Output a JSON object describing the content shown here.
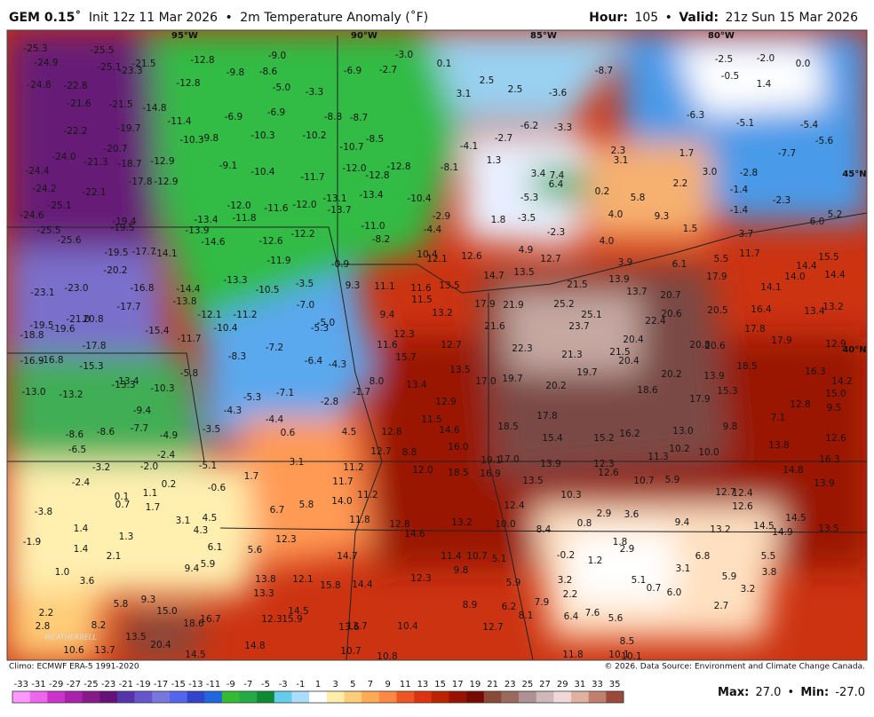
{
  "header": {
    "model": "GEM 0.15˚",
    "init": "Init 12z 11 Mar 2026",
    "separator": "•",
    "product": "2m Temperature Anomaly (˚F)",
    "hour_label": "Hour:",
    "hour": "105",
    "valid_label": "Valid:",
    "valid": "21z Sun 15 Mar 2026"
  },
  "map": {
    "longitudes": [
      "95°W",
      "90°W",
      "85°W",
      "80°W"
    ],
    "latitudes": [
      "45°N",
      "40°N"
    ],
    "logo": "WEATHERBELL",
    "values": [
      "-25.3",
      "-24.9",
      "-25.5",
      "-25.1",
      "-23.3",
      "-21.5",
      "-12.8",
      "-9.0",
      "-9.8",
      "-8.6",
      "-6.9",
      "-2.7",
      "0.1",
      "-3.0",
      "2.5",
      "2.5",
      "3.1",
      "-3.6",
      "-8.7",
      "-2.5",
      "-2.0",
      "0.0",
      "-0.5",
      "1.4",
      "-24.8",
      "-22.8",
      "-21.6",
      "-21.5",
      "-14.8",
      "-12.8",
      "-5.0",
      "-3.3",
      "-6.9",
      "-6.9",
      "-8.8",
      "-8.7",
      "-6.3",
      "-5.1",
      "-5.4",
      "-5.6",
      "-22.2",
      "-19.7",
      "-11.4",
      "-10.3",
      "-9.8",
      "-10.3",
      "-10.2",
      "-8.5",
      "-10.7",
      "-6.2",
      "-3.3",
      "-24.0",
      "-20.7",
      "-21.3",
      "-18.7",
      "-12.9",
      "-9.1",
      "-10.4",
      "-12.0",
      "-12.8",
      "-12.8",
      "-11.7",
      "-8.1",
      "-4.1",
      "-2.7",
      "1.3",
      "3.4",
      "7.4",
      "6.4",
      "2.3",
      "3.1",
      "1.7",
      "3.0",
      "-2.8",
      "-7.7",
      "-24.4",
      "-24.2",
      "-22.1",
      "-17.8",
      "-12.9",
      "-13.1",
      "-13.4",
      "-13.7",
      "-10.4",
      "-12.0",
      "-11.6",
      "-12.0",
      "-5.3",
      "-3.5",
      "0.2",
      "5.8",
      "2.2",
      "-1.4",
      "-1.4",
      "-2.3",
      "-25.1",
      "-24.6",
      "-25.5",
      "-19.4",
      "-19.5",
      "-13.4",
      "-11.8",
      "-11.0",
      "-2.9",
      "1.8",
      "4.0",
      "9.3",
      "1.5",
      "-2.3",
      "6.0",
      "5.2",
      "-25.6",
      "-13.9",
      "-14.6",
      "-12.6",
      "-12.2",
      "-8.2",
      "-4.4",
      "4.0",
      "4.9",
      "-19.5",
      "-17.7",
      "-14.1",
      "10.4",
      "12.1",
      "12.6",
      "12.7",
      "3.9",
      "6.1",
      "5.5",
      "11.7",
      "15.5",
      "14.4",
      "3.7",
      "-11.9",
      "-0.9",
      "-20.2",
      "-13.3",
      "14.7",
      "13.5",
      "14.0",
      "14.4",
      "-23.1",
      "-23.0",
      "-16.8",
      "-14.4",
      "-10.5",
      "-3.5",
      "9.3",
      "11.1",
      "11.6",
      "13.5",
      "21.5",
      "13.9",
      "13.7",
      "20.7",
      "17.9",
      "14.1",
      "-13.8",
      "-7.0",
      "11.5",
      "17.9",
      "21.9",
      "25.2",
      "16.4",
      "13.4",
      "13.2",
      "-17.7",
      "-12.1",
      "-11.2",
      "-21.0",
      "20.8",
      "9.4",
      "13.2",
      "25.1",
      "22.4",
      "20.6",
      "20.5",
      "-19.5",
      "-19.6",
      "-15.4",
      "-10.4",
      "-5.3",
      "-5.0",
      "21.6",
      "23.7",
      "17.8",
      "-18.8",
      "12.3",
      "20.4",
      "17.9",
      "12.9",
      "-17.8",
      "-11.7",
      "-7.2",
      "11.6",
      "12.7",
      "22.3",
      "21.3",
      "21.5",
      "20.8",
      "20.6",
      "-16.9",
      "-16.8",
      "-15.3",
      "-8.3",
      "-6.4",
      "-4.3",
      "15.7",
      "20.4",
      "18.5",
      "-5.8",
      "13.5",
      "19.7",
      "20.2",
      "13.9",
      "16.3",
      "14.2",
      "-13.0",
      "-13.2",
      "-13.3",
      "-13.4",
      "-10.3",
      "-5.3",
      "-7.1",
      "-1.7",
      "8.0",
      "13.4",
      "17.0",
      "19.7",
      "20.2",
      "18.6",
      "15.3",
      "15.0",
      "-9.4",
      "-4.3",
      "-2.8",
      "12.9",
      "17.9",
      "12.8",
      "7.1",
      "9.5",
      "-7.7",
      "-4.4",
      "11.5",
      "17.8",
      "18.5",
      "9.8",
      "-8.6",
      "-8.6",
      "-4.9",
      "-3.5",
      "0.6",
      "4.5",
      "12.8",
      "14.6",
      "15.4",
      "15.2",
      "16.2",
      "13.0",
      "13.8",
      "12.6",
      "-6.5",
      "16.0",
      "12.7",
      "8.8",
      "11.3",
      "10.2",
      "10.0",
      "16.3",
      "-3.2",
      "-2.0",
      "-2.4",
      "3.1",
      "11.2",
      "12.0",
      "18.5",
      "19.1",
      "17.0",
      "16.9",
      "13.9",
      "12.3",
      "12.6",
      "14.8",
      "-5.1",
      "-2.4",
      "0.2",
      "1.7",
      "11.7",
      "13.5",
      "10.7",
      "5.9",
      "13.9",
      "-0.6",
      "0.1",
      "1.1",
      "14.0",
      "11.2",
      "10.3",
      "12.7",
      "12.4",
      "12.6",
      "-3.8",
      "0.7",
      "1.7",
      "6.7",
      "5.8",
      "12.4",
      "14.5",
      "3.1",
      "4.5",
      "11.8",
      "12.8",
      "13.2",
      "10.0",
      "2.9",
      "3.6",
      "0.8",
      "9.4",
      "14.5",
      "13.5",
      "1.4",
      "4.3",
      "8.4",
      "13.2",
      "14.9",
      "1.3",
      "12.3",
      "14.6",
      "1.8",
      "-1.9",
      "1.4",
      "6.1",
      "5.6",
      "2.9",
      "-0.2",
      "1.2",
      "6.8",
      "5.5",
      "2.1",
      "14.7",
      "11.4",
      "10.7",
      "5.1",
      "5.9",
      "9.4",
      "1.0",
      "3.8",
      "3.6",
      "13.8",
      "12.1",
      "15.8",
      "14.4",
      "12.3",
      "9.8",
      "3.2",
      "5.1",
      "3.1",
      "5.9",
      "0.7",
      "6.0",
      "13.3",
      "5.9",
      "2.2",
      "3.2",
      "9.3",
      "5.8",
      "8.9",
      "6.2",
      "7.9",
      "2.7",
      "2.2",
      "15.0",
      "14.5",
      "12.3",
      "15.9",
      "6.4",
      "7.6",
      "5.6",
      "8.1",
      "2.8",
      "8.2",
      "16.7",
      "18.6",
      "13.6",
      "13.7",
      "10.4",
      "12.7",
      "13.5",
      "20.4",
      "14.8",
      "8.5",
      "10.6",
      "13.7",
      "14.5",
      "10.7",
      "10.8",
      "11.8",
      "10.1",
      "10.1"
    ]
  },
  "footer": {
    "climo": "Climo: ECMWF ERA-5 1991-2020",
    "copyright": "© 2026. Data Source: Environment and Climate Change Canada.",
    "max_label": "Max:",
    "max": "27.0",
    "separator": "•",
    "min_label": "Min:",
    "min": "-27.0"
  },
  "colorbar": {
    "ticks": [
      -33,
      -31,
      -29,
      -27,
      -25,
      -23,
      -21,
      -19,
      -17,
      -15,
      -13,
      -11,
      -9,
      -7,
      -5,
      -3,
      -1,
      1,
      3,
      5,
      7,
      9,
      11,
      13,
      15,
      17,
      19,
      21,
      23,
      25,
      27,
      29,
      31,
      33,
      35
    ],
    "colors": [
      "#ff99ff",
      "#ee66ee",
      "#cc33cc",
      "#aa22aa",
      "#881a88",
      "#661177",
      "#5533aa",
      "#6655cc",
      "#7777dd",
      "#5566ee",
      "#3344cc",
      "#2266dd",
      "#33bb33",
      "#22aa44",
      "#118833",
      "#66ccee",
      "#aaddff",
      "#ffffff",
      "#ffeeaa",
      "#ffcc77",
      "#ffaa55",
      "#ff8844",
      "#ee5522",
      "#dd3311",
      "#bb2200",
      "#991100",
      "#770a00",
      "#8a4a3a",
      "#9a6a5e",
      "#b09090",
      "#d0b8b8",
      "#f0d8d8",
      "#e0b0a0",
      "#c08070",
      "#9a4a3a"
    ]
  }
}
